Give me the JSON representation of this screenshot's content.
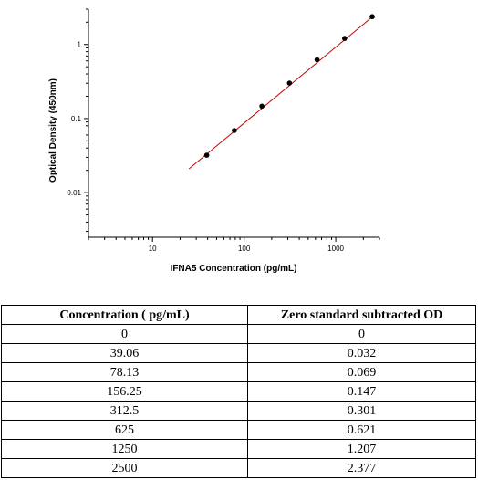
{
  "chart_data": {
    "type": "scatter",
    "xscale": "log",
    "yscale": "log",
    "xlabel": "IFNA5 Concentration (pg/mL)",
    "ylabel": "Optical Density (450nm)",
    "xlim": [
      2,
      3000
    ],
    "ylim": [
      0.0025,
      3.0
    ],
    "x_ticks": [
      10,
      100,
      1000
    ],
    "x_tick_labels": [
      "10",
      "100",
      "1000"
    ],
    "y_ticks": [
      0.01,
      0.1,
      1
    ],
    "y_tick_labels": [
      "0.01",
      "0.1",
      "1"
    ],
    "grid": false,
    "points": [
      {
        "x": 39.06,
        "y": 0.032
      },
      {
        "x": 78.13,
        "y": 0.069
      },
      {
        "x": 156.25,
        "y": 0.147
      },
      {
        "x": 312.5,
        "y": 0.301
      },
      {
        "x": 625,
        "y": 0.621
      },
      {
        "x": 1250,
        "y": 1.207
      },
      {
        "x": 2500,
        "y": 2.377
      }
    ],
    "fit_line": {
      "x": [
        25,
        2600
      ],
      "y": [
        0.021,
        2.45
      ],
      "color": "#c00000"
    },
    "marker_color": "#000000"
  },
  "table": {
    "headers": [
      "Concentration ( pg/mL)",
      "Zero standard subtracted OD"
    ],
    "rows": [
      [
        "0",
        "0"
      ],
      [
        "39.06",
        "0.032"
      ],
      [
        "78.13",
        "0.069"
      ],
      [
        "156.25",
        "0.147"
      ],
      [
        "312.5",
        "0.301"
      ],
      [
        "625",
        "0.621"
      ],
      [
        "1250",
        "1.207"
      ],
      [
        "2500",
        "2.377"
      ]
    ]
  }
}
